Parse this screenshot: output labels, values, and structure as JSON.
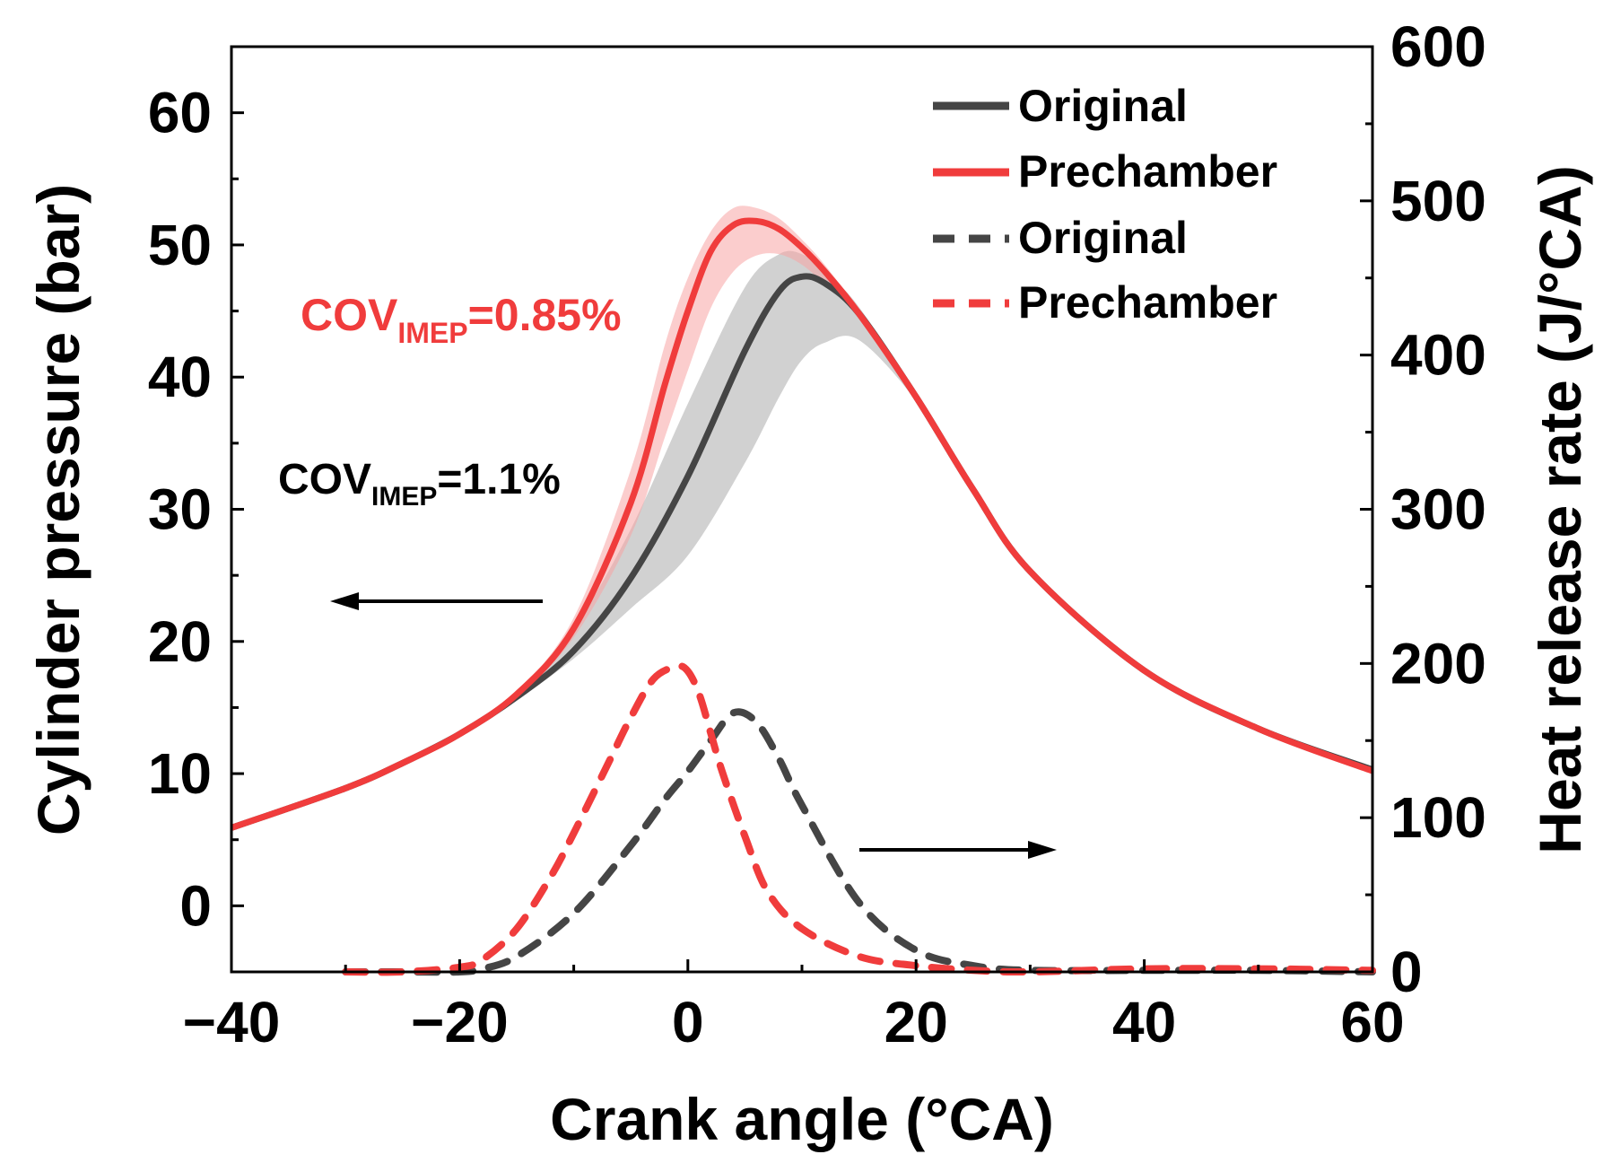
{
  "chart_data": {
    "type": "line",
    "xlabel": "Crank angle (°CA)",
    "ylabel_left": "Cylinder pressure (bar)",
    "ylabel_right": "Heat release rate (J/°CA)",
    "xlim": [
      -40,
      60
    ],
    "ylim_left": [
      -5,
      65
    ],
    "ylim_right": [
      0,
      600
    ],
    "x_ticks": [
      -40,
      -20,
      0,
      20,
      40,
      60
    ],
    "x_tick_labels": [
      "−40",
      "−20",
      "0",
      "20",
      "40",
      "60"
    ],
    "y_left_ticks": [
      0,
      10,
      20,
      30,
      40,
      50,
      60
    ],
    "y_left_tick_labels": [
      "0",
      "10",
      "20",
      "30",
      "40",
      "50",
      "60"
    ],
    "y_right_ticks": [
      0,
      100,
      200,
      300,
      400,
      500,
      600
    ],
    "y_right_tick_labels": [
      "0",
      "100",
      "200",
      "300",
      "400",
      "500",
      "600"
    ],
    "legend_position": "top-right",
    "annotations": {
      "prechamber_cov_prefix": "COV",
      "prechamber_cov_sub": "IMEP",
      "prechamber_cov_value": "=0.85%",
      "original_cov_prefix": "COV",
      "original_cov_sub": "IMEP",
      "original_cov_value": "=1.1%"
    },
    "series": [
      {
        "name": "Original",
        "axis": "left",
        "style": "solid",
        "color": "#454545",
        "x": [
          -40,
          -30,
          -25,
          -20,
          -15,
          -10,
          -5,
          0,
          5,
          8,
          10,
          12,
          15,
          20,
          25,
          30,
          40,
          50,
          60
        ],
        "values": [
          5.9,
          8.9,
          10.8,
          13.0,
          15.8,
          19.3,
          24.8,
          32.5,
          42.0,
          46.5,
          47.6,
          47.1,
          44.8,
          38.5,
          31.5,
          25.3,
          17.8,
          13.4,
          10.3
        ],
        "band_upper": [
          5.9,
          8.9,
          10.8,
          13.0,
          16.0,
          21.0,
          28.5,
          38.0,
          46.8,
          49.3,
          49.3,
          48.0,
          45.3,
          38.7,
          31.6,
          25.3,
          17.8,
          13.4,
          10.3
        ],
        "band_lower": [
          5.9,
          8.9,
          10.8,
          13.0,
          15.6,
          18.7,
          22.5,
          26.5,
          33.5,
          38.5,
          41.3,
          42.6,
          42.8,
          38.2,
          31.4,
          25.3,
          17.8,
          13.4,
          10.3
        ]
      },
      {
        "name": "Prechamber",
        "axis": "left",
        "style": "solid",
        "color": "#f03c3c",
        "x": [
          -40,
          -30,
          -25,
          -20,
          -15,
          -10,
          -5,
          -2,
          0,
          2,
          4,
          6,
          8,
          10,
          12,
          15,
          20,
          25,
          30,
          40,
          50,
          60
        ],
        "values": [
          5.9,
          8.9,
          10.8,
          13.0,
          16.0,
          21.0,
          30.5,
          39.5,
          45.0,
          49.5,
          51.5,
          51.8,
          51.2,
          49.8,
          48.0,
          44.8,
          38.5,
          31.5,
          25.3,
          17.8,
          13.4,
          10.2
        ],
        "band_upper": [
          5.9,
          8.9,
          10.8,
          13.0,
          16.2,
          21.8,
          33.0,
          42.5,
          47.5,
          51.0,
          52.8,
          52.8,
          52.0,
          50.4,
          48.5,
          45.0,
          38.5,
          31.5,
          25.3,
          17.8,
          13.4,
          10.2
        ],
        "band_lower": [
          5.9,
          8.9,
          10.8,
          13.0,
          15.8,
          20.3,
          28.0,
          35.5,
          40.5,
          45.2,
          48.0,
          49.2,
          49.3,
          48.5,
          47.0,
          44.5,
          38.5,
          31.5,
          25.3,
          17.8,
          13.4,
          10.2
        ]
      },
      {
        "name": "Original",
        "axis": "right",
        "style": "dashed",
        "color": "#454545",
        "x": [
          -30,
          -25,
          -20,
          -18,
          -15,
          -10,
          -5,
          -2,
          0,
          2,
          4,
          6,
          8,
          10,
          15,
          20,
          25,
          30,
          40,
          50,
          60
        ],
        "values": [
          0,
          0,
          0,
          2,
          10,
          38,
          82,
          112,
          130,
          150,
          168,
          162,
          138,
          108,
          45,
          14,
          4,
          1,
          1,
          1,
          0
        ]
      },
      {
        "name": "Prechamber",
        "axis": "right",
        "style": "dashed",
        "color": "#f03c3c",
        "x": [
          -30,
          -25,
          -20,
          -18,
          -15,
          -12,
          -10,
          -7,
          -5,
          -3,
          -1,
          0,
          1,
          2,
          3,
          5,
          7,
          10,
          15,
          20,
          25,
          30,
          40,
          50,
          60
        ],
        "values": [
          0,
          0,
          3,
          8,
          28,
          62,
          90,
          135,
          165,
          190,
          198,
          195,
          180,
          155,
          130,
          88,
          52,
          28,
          10,
          4,
          1,
          0,
          2,
          2,
          1
        ]
      }
    ]
  }
}
